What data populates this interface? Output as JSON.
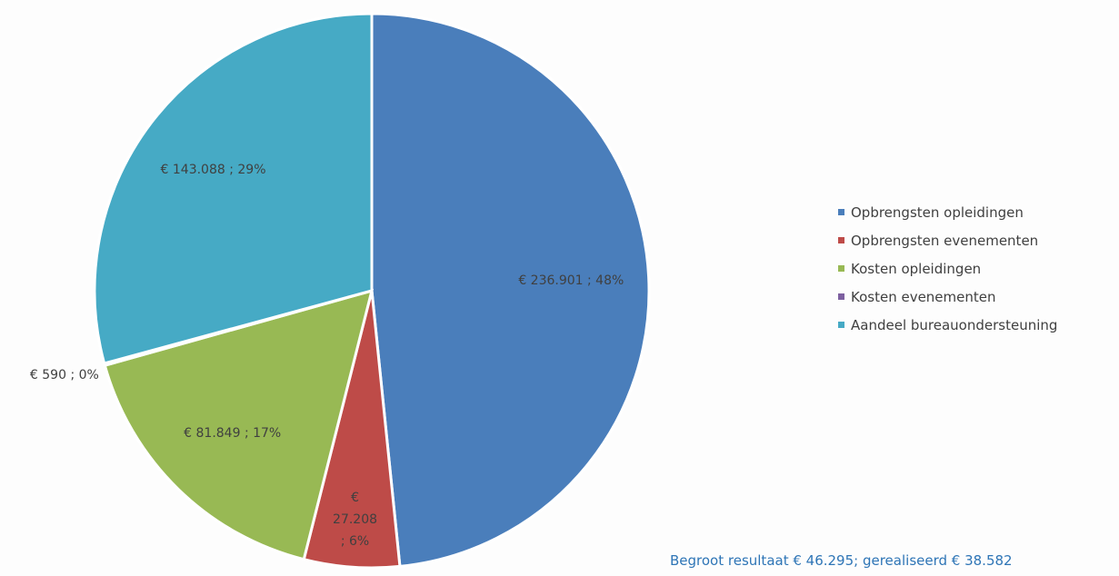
{
  "chart_data": {
    "type": "pie",
    "categories": [
      "Opbrengsten opleidingen",
      "Opbrengsten evenementen",
      "Kosten opleidingen",
      "Kosten evenementen",
      "Aandeel bureauondersteuning"
    ],
    "values": [
      236901,
      27208,
      81849,
      590,
      143088
    ],
    "value_labels": [
      "€ 236.901 ; 48%",
      "€ 27.208 ; 6%",
      "€ 81.849 ; 17%",
      "€ 590 ; 0%",
      "€ 143.088 ; 29%"
    ],
    "colors": [
      "#4a7ebb",
      "#be4b48",
      "#98b954",
      "#7d60a0",
      "#46aac5"
    ],
    "legend": "right",
    "annotation": "Begroot resultaat € 46.295; gerealiseerd € 38.582"
  }
}
